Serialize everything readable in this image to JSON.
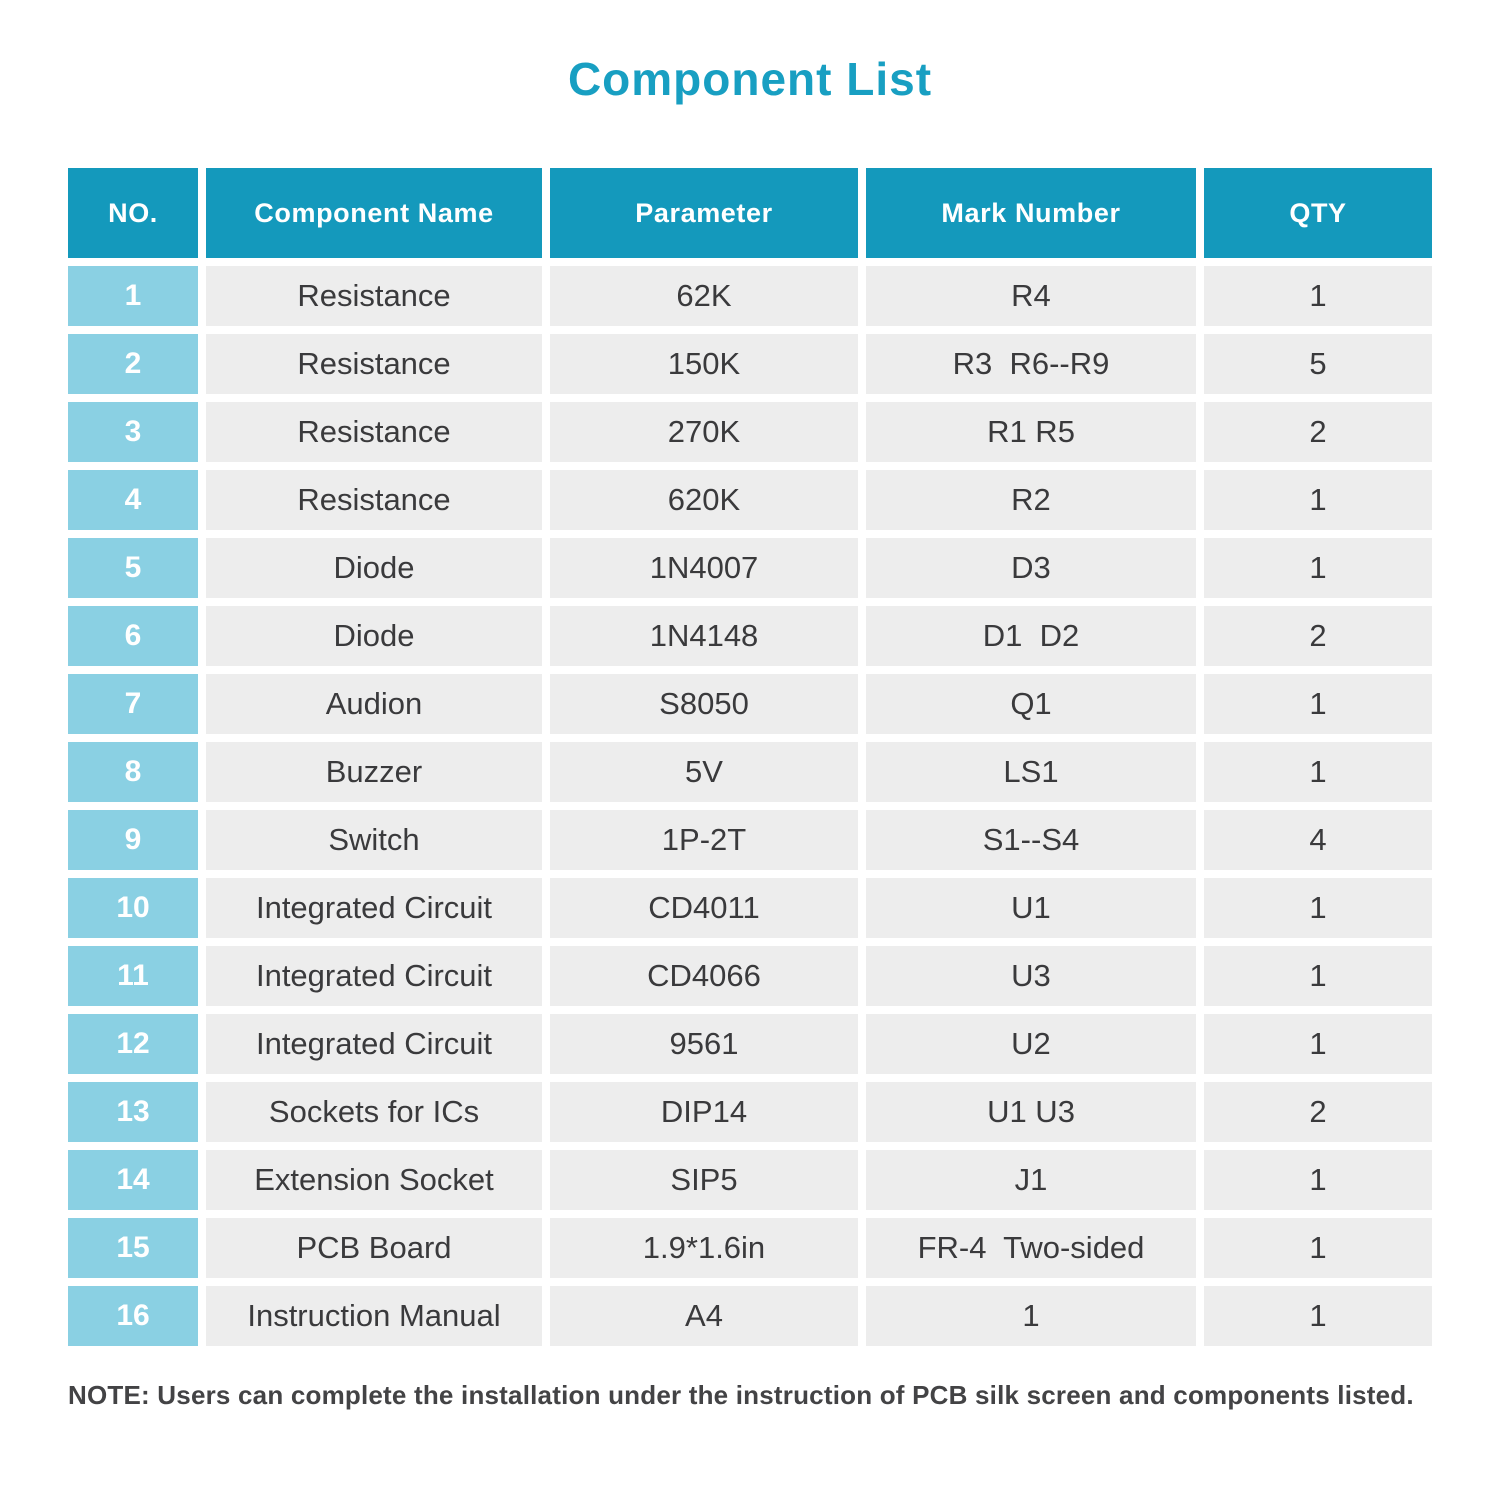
{
  "title": "Component List",
  "colors": {
    "title_teal": "#189FC2",
    "header_teal": "#1499BC",
    "no_column_blue": "#8AD0E3",
    "cell_gray": "#EDEDED",
    "text_dark": "#3A3A3C"
  },
  "table": {
    "headers": [
      "NO.",
      "Component Name",
      "Parameter",
      "Mark Number",
      "QTY"
    ],
    "rows": [
      {
        "no": "1",
        "name": "Resistance",
        "parameter": "62K",
        "mark": "R4",
        "qty": "1"
      },
      {
        "no": "2",
        "name": "Resistance",
        "parameter": "150K",
        "mark": "R3  R6--R9",
        "qty": "5"
      },
      {
        "no": "3",
        "name": "Resistance",
        "parameter": "270K",
        "mark": "R1 R5",
        "qty": "2"
      },
      {
        "no": "4",
        "name": "Resistance",
        "parameter": "620K",
        "mark": "R2",
        "qty": "1"
      },
      {
        "no": "5",
        "name": "Diode",
        "parameter": "1N4007",
        "mark": "D3",
        "qty": "1"
      },
      {
        "no": "6",
        "name": "Diode",
        "parameter": "1N4148",
        "mark": "D1  D2",
        "qty": "2"
      },
      {
        "no": "7",
        "name": "Audion",
        "parameter": "S8050",
        "mark": "Q1",
        "qty": "1"
      },
      {
        "no": "8",
        "name": "Buzzer",
        "parameter": "5V",
        "mark": "LS1",
        "qty": "1"
      },
      {
        "no": "9",
        "name": "Switch",
        "parameter": "1P-2T",
        "mark": "S1--S4",
        "qty": "4"
      },
      {
        "no": "10",
        "name": "Integrated Circuit",
        "parameter": "CD4011",
        "mark": "U1",
        "qty": "1"
      },
      {
        "no": "11",
        "name": "Integrated Circuit",
        "parameter": "CD4066",
        "mark": "U3",
        "qty": "1"
      },
      {
        "no": "12",
        "name": "Integrated Circuit",
        "parameter": "9561",
        "mark": "U2",
        "qty": "1"
      },
      {
        "no": "13",
        "name": "Sockets for ICs",
        "parameter": "DIP14",
        "mark": "U1 U3",
        "qty": "2"
      },
      {
        "no": "14",
        "name": "Extension Socket",
        "parameter": "SIP5",
        "mark": "J1",
        "qty": "1"
      },
      {
        "no": "15",
        "name": "PCB Board",
        "parameter": "1.9*1.6in",
        "mark": "FR-4  Two-sided",
        "qty": "1"
      },
      {
        "no": "16",
        "name": "Instruction Manual",
        "parameter": "A4",
        "mark": "1",
        "qty": "1"
      }
    ]
  },
  "note": "NOTE: Users can complete the installation under the instruction of PCB silk screen and components listed."
}
